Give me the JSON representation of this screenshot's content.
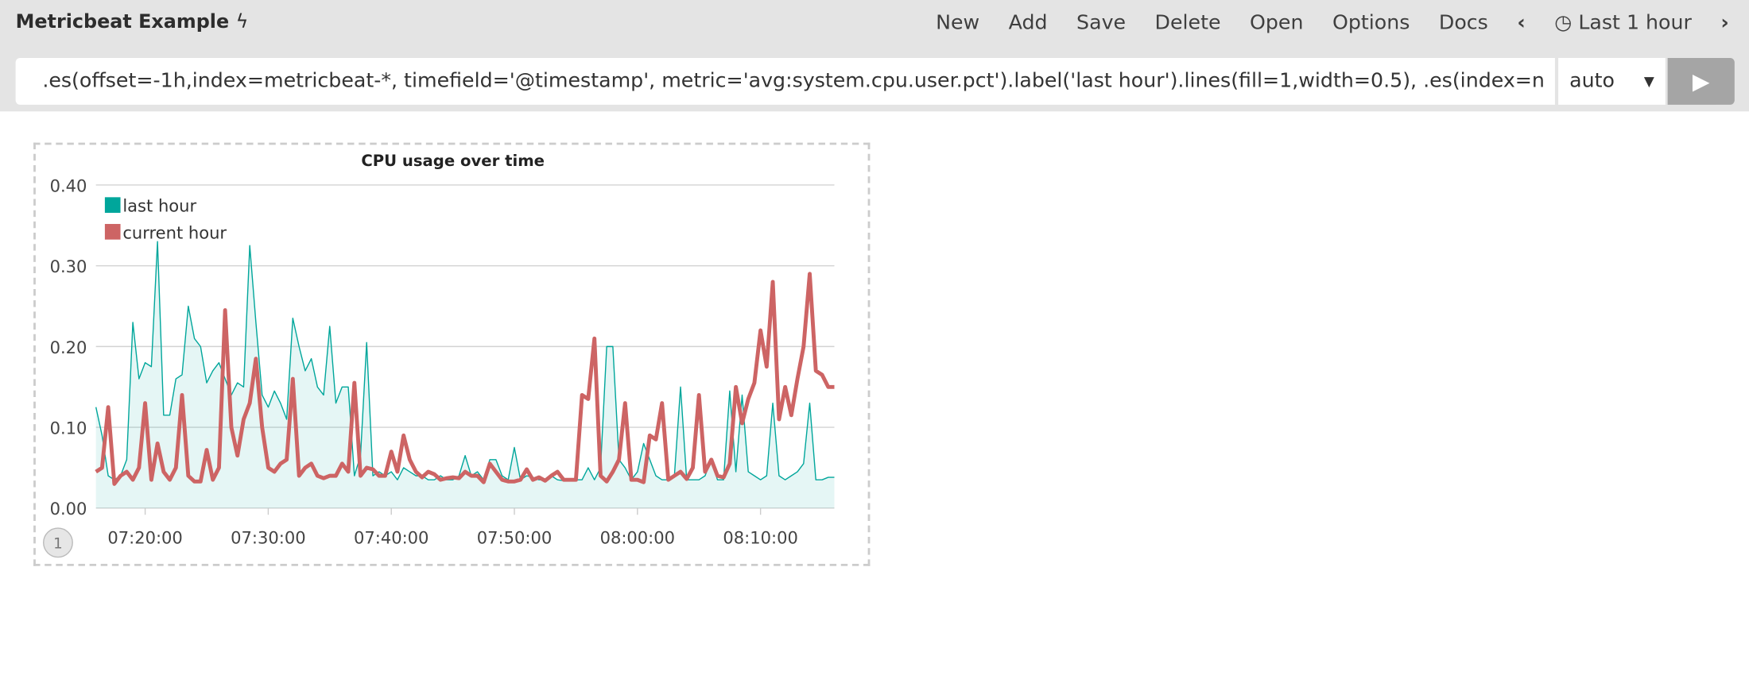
{
  "header": {
    "title": "Metricbeat Example",
    "title_icon": "bolt-icon",
    "nav": [
      "New",
      "Add",
      "Save",
      "Delete",
      "Open",
      "Options",
      "Docs"
    ],
    "time_range": "Last 1 hour",
    "time_icon": "clock-icon"
  },
  "query": {
    "expression": ".es(offset=-1h,index=metricbeat-*, timefield='@timestamp', metric='avg:system.cpu.user.pct').label('last hour').lines(fill=1,width=0.5), .es(index=n",
    "interval": "auto",
    "run_icon": "play-icon"
  },
  "panel": {
    "badge": "1"
  },
  "chart_data": {
    "type": "line",
    "title": "CPU usage over time",
    "ylim": [
      0,
      0.4
    ],
    "yticks": [
      "0.00",
      "0.10",
      "0.20",
      "0.30",
      "0.40"
    ],
    "xticks": [
      "07:20:00",
      "07:30:00",
      "07:40:00",
      "07:50:00",
      "08:00:00",
      "08:10:00"
    ],
    "x_start": "07:16:00",
    "x_step_seconds": 30,
    "grid": true,
    "legend": "top-left",
    "series": [
      {
        "name": "last hour",
        "color": "#00a69b",
        "fill": true,
        "values": [
          0.125,
          0.09,
          0.04,
          0.035,
          0.04,
          0.06,
          0.23,
          0.16,
          0.18,
          0.175,
          0.33,
          0.115,
          0.115,
          0.16,
          0.165,
          0.25,
          0.21,
          0.2,
          0.155,
          0.17,
          0.18,
          0.16,
          0.14,
          0.155,
          0.15,
          0.325,
          0.23,
          0.14,
          0.125,
          0.145,
          0.13,
          0.11,
          0.235,
          0.2,
          0.17,
          0.185,
          0.15,
          0.14,
          0.225,
          0.13,
          0.15,
          0.15,
          0.04,
          0.065,
          0.205,
          0.04,
          0.045,
          0.04,
          0.045,
          0.035,
          0.05,
          0.045,
          0.04,
          0.04,
          0.035,
          0.035,
          0.04,
          0.035,
          0.035,
          0.04,
          0.065,
          0.04,
          0.045,
          0.035,
          0.06,
          0.06,
          0.04,
          0.035,
          0.075,
          0.035,
          0.04,
          0.038,
          0.035,
          0.035,
          0.04,
          0.035,
          0.034,
          0.035,
          0.035,
          0.035,
          0.05,
          0.035,
          0.05,
          0.2,
          0.2,
          0.06,
          0.05,
          0.035,
          0.045,
          0.08,
          0.06,
          0.04,
          0.035,
          0.035,
          0.04,
          0.15,
          0.035,
          0.035,
          0.035,
          0.04,
          0.06,
          0.035,
          0.035,
          0.145,
          0.045,
          0.14,
          0.045,
          0.04,
          0.035,
          0.04,
          0.13,
          0.04,
          0.035,
          0.04,
          0.045,
          0.055,
          0.13,
          0.035,
          0.035,
          0.038,
          0.038
        ]
      },
      {
        "name": "current hour",
        "color": "#cd6464",
        "fill": false,
        "values": [
          0.045,
          0.05,
          0.125,
          0.03,
          0.04,
          0.045,
          0.035,
          0.05,
          0.13,
          0.035,
          0.08,
          0.045,
          0.035,
          0.05,
          0.14,
          0.04,
          0.033,
          0.033,
          0.072,
          0.035,
          0.05,
          0.245,
          0.1,
          0.065,
          0.11,
          0.13,
          0.185,
          0.1,
          0.05,
          0.045,
          0.055,
          0.06,
          0.16,
          0.04,
          0.05,
          0.055,
          0.04,
          0.037,
          0.04,
          0.04,
          0.055,
          0.045,
          0.155,
          0.04,
          0.05,
          0.048,
          0.04,
          0.04,
          0.07,
          0.045,
          0.09,
          0.06,
          0.045,
          0.038,
          0.045,
          0.042,
          0.035,
          0.037,
          0.038,
          0.037,
          0.045,
          0.04,
          0.04,
          0.032,
          0.055,
          0.045,
          0.035,
          0.033,
          0.033,
          0.035,
          0.048,
          0.035,
          0.038,
          0.034,
          0.04,
          0.045,
          0.035,
          0.035,
          0.035,
          0.14,
          0.135,
          0.21,
          0.04,
          0.033,
          0.045,
          0.06,
          0.13,
          0.035,
          0.035,
          0.032,
          0.09,
          0.085,
          0.13,
          0.035,
          0.04,
          0.045,
          0.036,
          0.05,
          0.14,
          0.045,
          0.06,
          0.04,
          0.038,
          0.055,
          0.15,
          0.105,
          0.135,
          0.155,
          0.22,
          0.175,
          0.28,
          0.11,
          0.15,
          0.115,
          0.16,
          0.2,
          0.29,
          0.17,
          0.165,
          0.15,
          0.15
        ]
      }
    ]
  }
}
